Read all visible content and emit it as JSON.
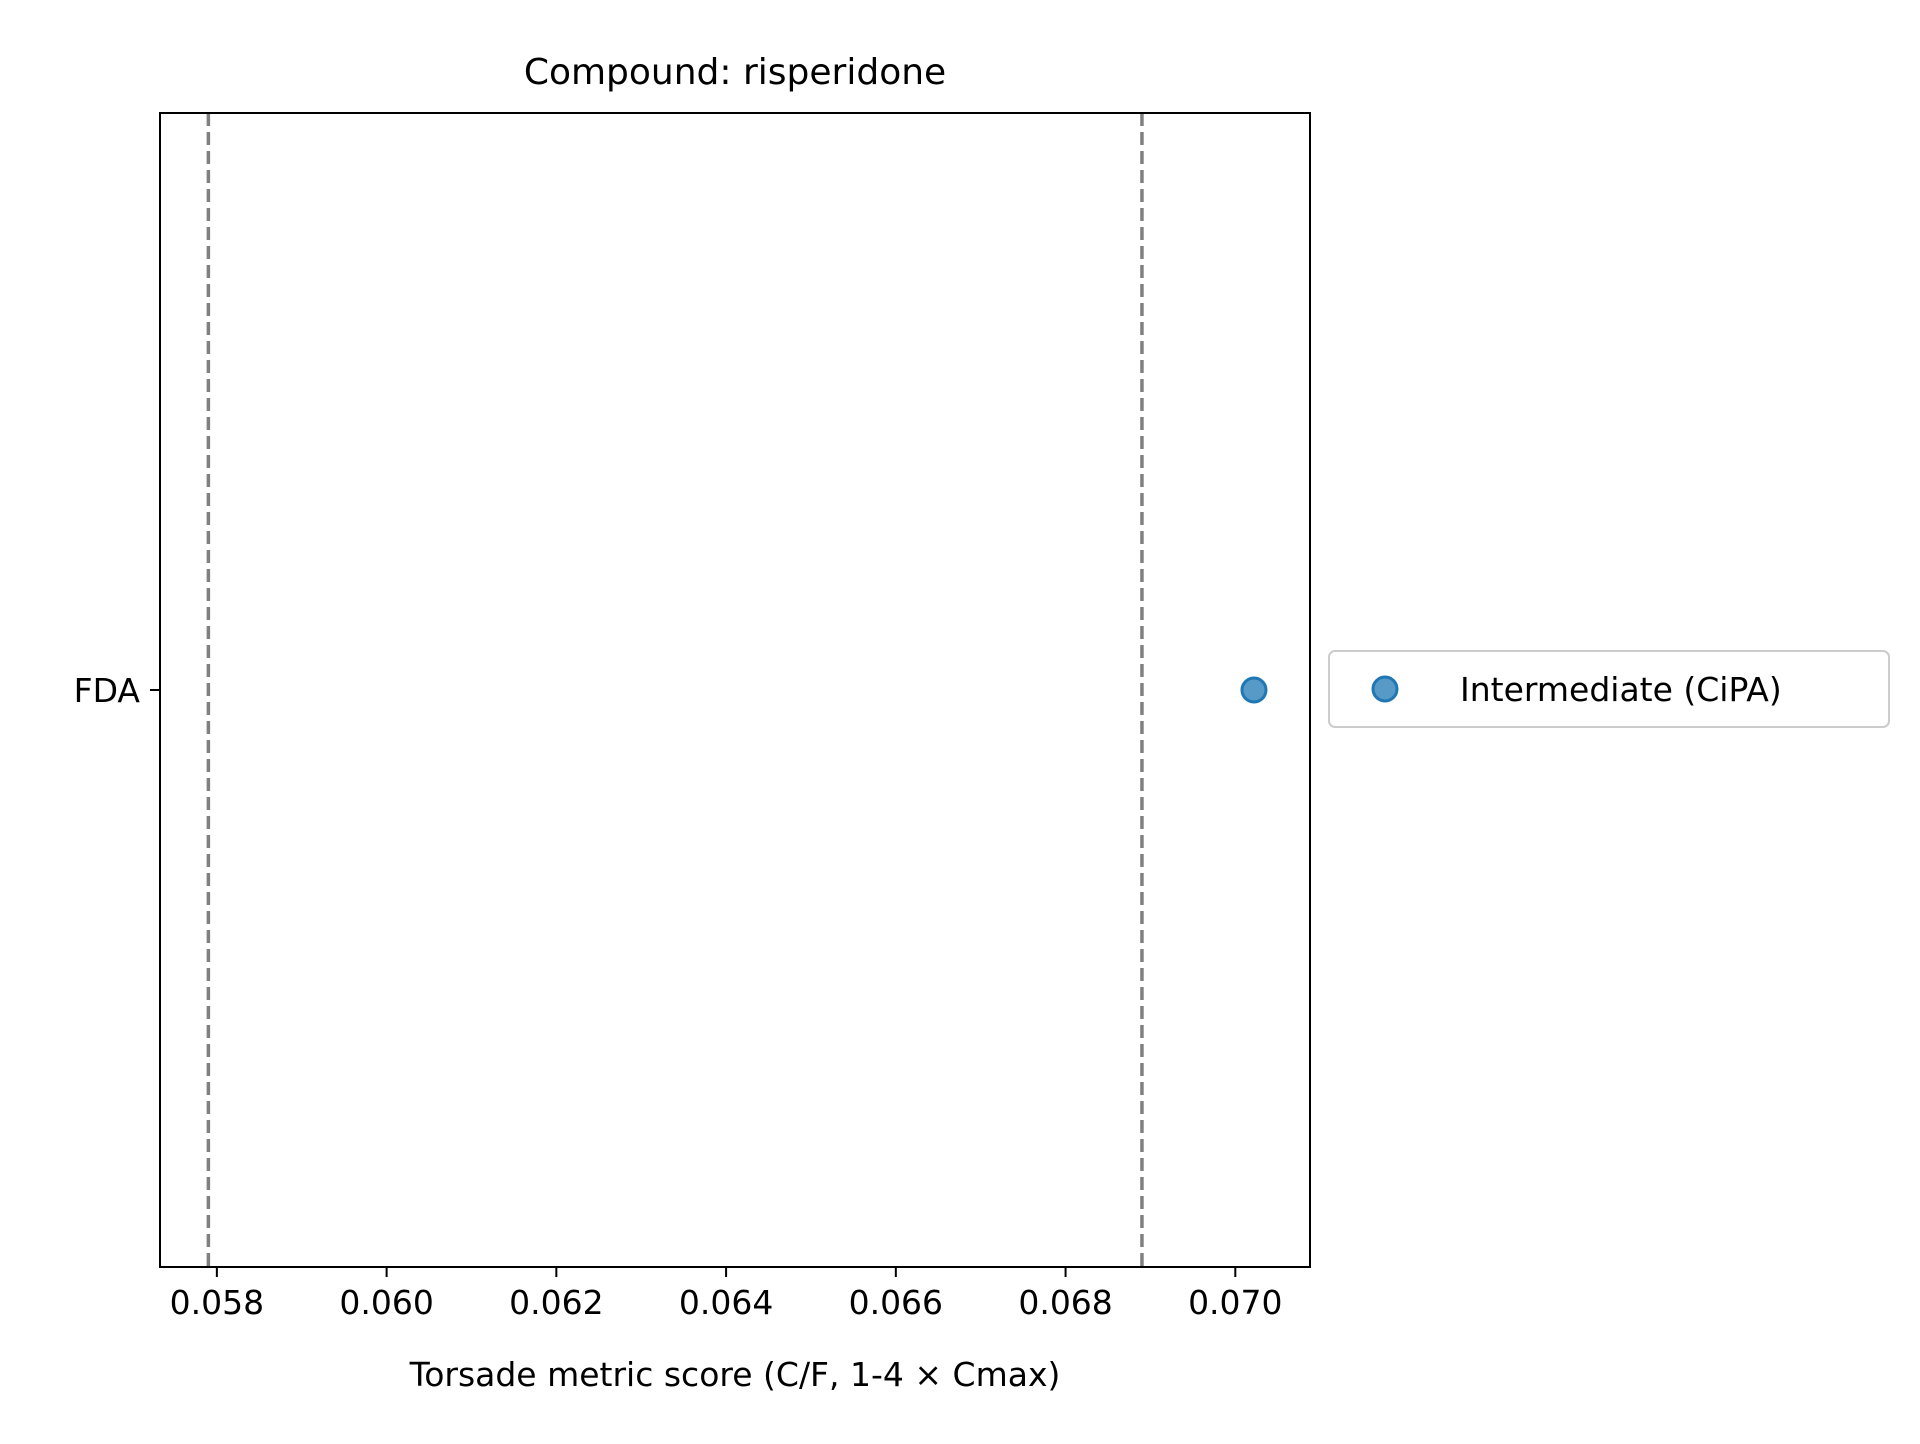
{
  "chart_data": {
    "type": "scatter",
    "title": "Compound: risperidone",
    "xlabel": "Torsade metric score (C/F, 1-4 × Cmax)",
    "ylabel": "",
    "xlim": [
      0.05733,
      0.07088
    ],
    "xticks": [
      0.058,
      0.06,
      0.062,
      0.064,
      0.066,
      0.068,
      0.07
    ],
    "xtick_labels": [
      "0.058",
      "0.060",
      "0.062",
      "0.064",
      "0.066",
      "0.068",
      "0.070"
    ],
    "categories": [
      "FDA"
    ],
    "series": [
      {
        "name": "Intermediate (CiPA)",
        "color": "#1f77b4",
        "points": [
          {
            "category": "FDA",
            "x": 0.07022
          }
        ]
      }
    ],
    "reference_lines": [
      {
        "x": 0.0579,
        "style": "dashed",
        "color": "#808080"
      },
      {
        "x": 0.0689,
        "style": "dashed",
        "color": "#808080"
      }
    ],
    "grid": false,
    "legend_position": "right"
  }
}
